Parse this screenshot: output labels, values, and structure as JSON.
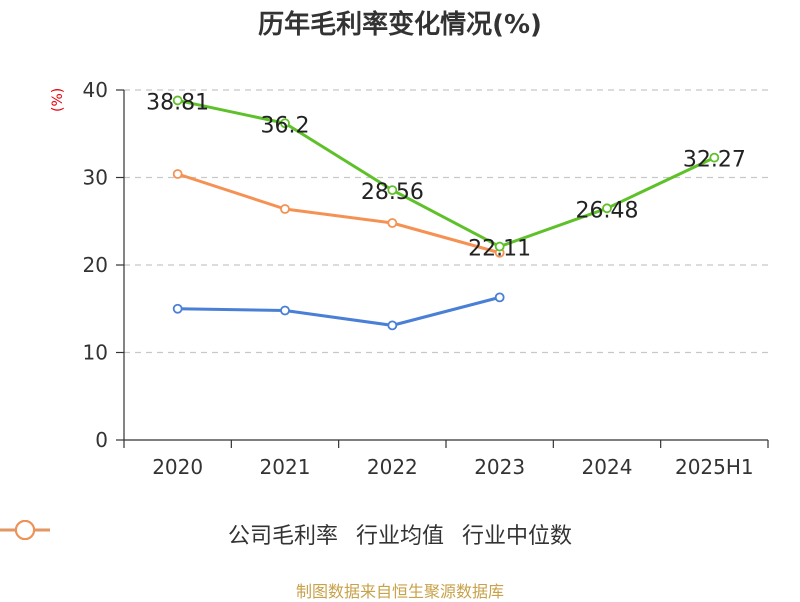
{
  "chart_data": {
    "type": "line",
    "title": "历年毛利率变化情况(%)",
    "ylabel": "(%)",
    "xlabel": "",
    "categories": [
      "2020",
      "2021",
      "2022",
      "2023",
      "2024",
      "2025H1"
    ],
    "ylim": [
      0,
      40
    ],
    "yticks": [
      0,
      10,
      20,
      30,
      40
    ],
    "grid": true,
    "legend_position": "bottom",
    "series": [
      {
        "name": "公司毛利率",
        "color": "#5ec12a",
        "values": [
          38.81,
          36.2,
          28.56,
          22.11,
          26.48,
          32.27
        ],
        "labels": [
          "38.81",
          "36.2",
          "28.56",
          "22.11",
          "26.48",
          "32.27"
        ]
      },
      {
        "name": "行业均值",
        "color": "#4a7fd6",
        "values": [
          15.0,
          14.8,
          13.1,
          16.3,
          null,
          null
        ]
      },
      {
        "name": "行业中位数",
        "color": "#f59153",
        "values": [
          30.4,
          26.4,
          24.8,
          21.4,
          null,
          null
        ]
      }
    ]
  },
  "source": "制图数据来自恒生聚源数据库"
}
